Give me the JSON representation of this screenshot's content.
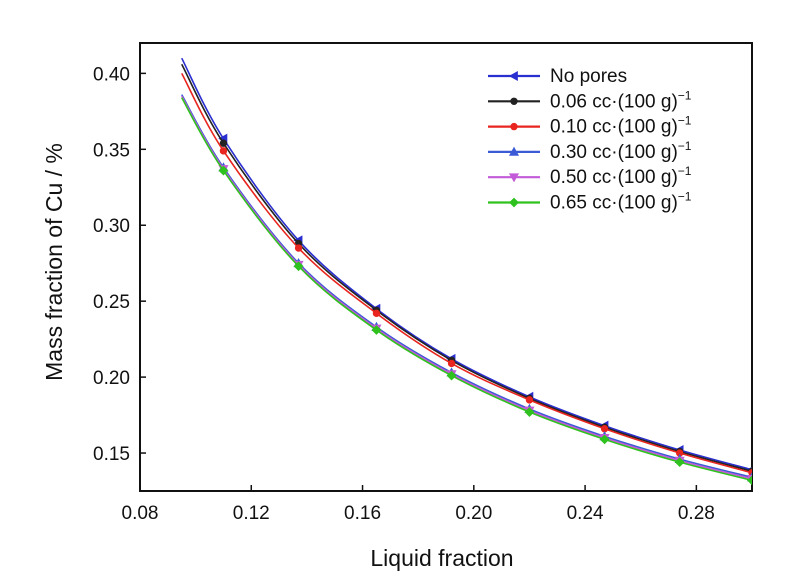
{
  "chart_data": {
    "type": "line",
    "xlabel": "Liquid fraction",
    "ylabel": "Mass fraction of Cu / %",
    "xlim": [
      0.08,
      0.3
    ],
    "ylim": [
      0.125,
      0.42
    ],
    "xticks": [
      "0.08",
      "0.12",
      "0.16",
      "0.20",
      "0.24",
      "0.28"
    ],
    "yticks": [
      "0.15",
      "0.20",
      "0.25",
      "0.30",
      "0.35",
      "0.40"
    ],
    "legend_position": "top-right",
    "grid": false,
    "series": [
      {
        "name": "No pores",
        "color": "#2a2fd0",
        "marker": "left-triangle",
        "points": [
          [
            0.095,
            0.41
          ],
          [
            0.11,
            0.357
          ],
          [
            0.137,
            0.29
          ],
          [
            0.165,
            0.245
          ],
          [
            0.192,
            0.212
          ],
          [
            0.22,
            0.187
          ],
          [
            0.247,
            0.168
          ],
          [
            0.274,
            0.152
          ],
          [
            0.3,
            0.139
          ]
        ]
      },
      {
        "name": "0.06 cc·(100 g)",
        "sup": "−1",
        "color": "#222222",
        "marker": "circle",
        "points": [
          [
            0.095,
            0.406
          ],
          [
            0.11,
            0.354
          ],
          [
            0.137,
            0.288
          ],
          [
            0.165,
            0.244
          ],
          [
            0.192,
            0.211
          ],
          [
            0.22,
            0.186
          ],
          [
            0.247,
            0.167
          ],
          [
            0.274,
            0.151
          ],
          [
            0.3,
            0.138
          ]
        ]
      },
      {
        "name": "0.10 cc·(100 g)",
        "sup": "−1",
        "color": "#e8251f",
        "marker": "circle",
        "points": [
          [
            0.095,
            0.4
          ],
          [
            0.11,
            0.349
          ],
          [
            0.137,
            0.285
          ],
          [
            0.165,
            0.242
          ],
          [
            0.192,
            0.209
          ],
          [
            0.22,
            0.185
          ],
          [
            0.247,
            0.166
          ],
          [
            0.274,
            0.15
          ],
          [
            0.3,
            0.137
          ]
        ]
      },
      {
        "name": "0.30 cc·(100 g)",
        "sup": "−1",
        "color": "#3b5bd6",
        "marker": "triangle-up",
        "points": [
          [
            0.095,
            0.386
          ],
          [
            0.11,
            0.338
          ],
          [
            0.137,
            0.275
          ],
          [
            0.165,
            0.233
          ],
          [
            0.192,
            0.203
          ],
          [
            0.22,
            0.179
          ],
          [
            0.247,
            0.161
          ],
          [
            0.274,
            0.146
          ],
          [
            0.3,
            0.134
          ]
        ]
      },
      {
        "name": "0.50 cc·(100 g)",
        "sup": "−1",
        "color": "#c35ad8",
        "marker": "triangle-down",
        "points": [
          [
            0.095,
            0.385
          ],
          [
            0.11,
            0.337
          ],
          [
            0.137,
            0.274
          ],
          [
            0.165,
            0.232
          ],
          [
            0.192,
            0.202
          ],
          [
            0.22,
            0.178
          ],
          [
            0.247,
            0.16
          ],
          [
            0.274,
            0.145
          ],
          [
            0.3,
            0.133
          ]
        ]
      },
      {
        "name": "0.65 cc·(100 g)",
        "sup": "−1",
        "color": "#2fc21f",
        "marker": "diamond",
        "points": [
          [
            0.095,
            0.384
          ],
          [
            0.11,
            0.336
          ],
          [
            0.137,
            0.273
          ],
          [
            0.165,
            0.231
          ],
          [
            0.192,
            0.201
          ],
          [
            0.22,
            0.177
          ],
          [
            0.247,
            0.159
          ],
          [
            0.274,
            0.144
          ],
          [
            0.3,
            0.132
          ]
        ]
      }
    ]
  }
}
